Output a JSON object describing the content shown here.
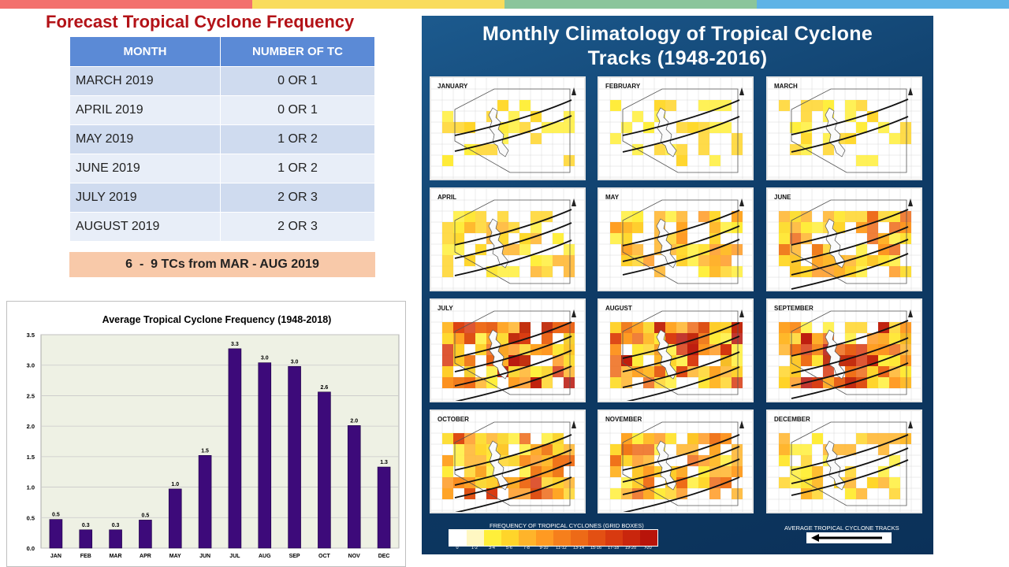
{
  "slide": {
    "title": "Forecast Tropical Cyclone Frequency",
    "accent_colors": [
      "#f3706d",
      "#f9dc5c",
      "#8bc59b",
      "#5fb3e6"
    ]
  },
  "forecast_table": {
    "headers": [
      "MONTH",
      "NUMBER OF TC"
    ],
    "rows": [
      {
        "month": "MARCH 2019",
        "count": "0 OR 1"
      },
      {
        "month": "APRIL 2019",
        "count": "0 OR 1"
      },
      {
        "month": "MAY 2019",
        "count": "1 OR 2"
      },
      {
        "month": "JUNE 2019",
        "count": "1 OR 2"
      },
      {
        "month": "JULY 2019",
        "count": "2 OR 3"
      },
      {
        "month": "AUGUST 2019",
        "count": "2 OR 3"
      }
    ],
    "summary": "6  -  9 TCs from MAR - AUG 2019"
  },
  "chart_data": {
    "type": "bar",
    "title": "Average Tropical Cyclone Frequency (1948-2018)",
    "categories": [
      "JAN",
      "FEB",
      "MAR",
      "APR",
      "MAY",
      "JUN",
      "JUL",
      "AUG",
      "SEP",
      "OCT",
      "NOV",
      "DEC"
    ],
    "values": [
      0.47,
      0.3,
      0.3,
      0.46,
      0.97,
      1.52,
      3.27,
      3.04,
      2.98,
      2.56,
      2.01,
      1.33
    ],
    "data_labels": [
      "0.5",
      "0.3",
      "0.3",
      "0.5",
      "1.0",
      "1.5",
      "3.3",
      "3.0",
      "3.0",
      "2.6",
      "2.0",
      "1.3"
    ],
    "yticks": [
      "0.0",
      "0.5",
      "1.0",
      "1.5",
      "2.0",
      "2.5",
      "3.0",
      "3.5"
    ],
    "ylim": [
      0,
      3.5
    ],
    "grid": true,
    "bar_color": "#3d0a7a",
    "plot_bg": "#eef1e4"
  },
  "climatology": {
    "title_line1": "Monthly Climatology of Tropical Cyclone",
    "title_line2": "Tracks (1948-2016)",
    "months": [
      "JANUARY",
      "FEBRUARY",
      "MARCH",
      "APRIL",
      "MAY",
      "JUNE",
      "JULY",
      "AUGUST",
      "SEPTEMBER",
      "OCTOBER",
      "NOVEMBER",
      "DECEMBER"
    ],
    "intensity": [
      1,
      1,
      1,
      2,
      3,
      4,
      6,
      6,
      6,
      5,
      4,
      2
    ],
    "legend_title": "FREQUENCY OF TROPICAL CYCLONES (GRID BOXES)",
    "legend_labels": [
      "0",
      "1-2",
      "3-4",
      "5-6",
      "7-8",
      "9-10",
      "11-12",
      "13-14",
      "15-16",
      "17-18",
      "19-20",
      ">20"
    ],
    "legend_colors": [
      "#ffffff",
      "#fff7c2",
      "#ffef3a",
      "#ffd52a",
      "#ffb42a",
      "#ff9a22",
      "#f67f1c",
      "#ed6a17",
      "#e35013",
      "#d83a10",
      "#c9260d",
      "#b8140a"
    ],
    "avg_tracks_label": "AVERAGE TROPICAL CYCLONE TRACKS"
  }
}
